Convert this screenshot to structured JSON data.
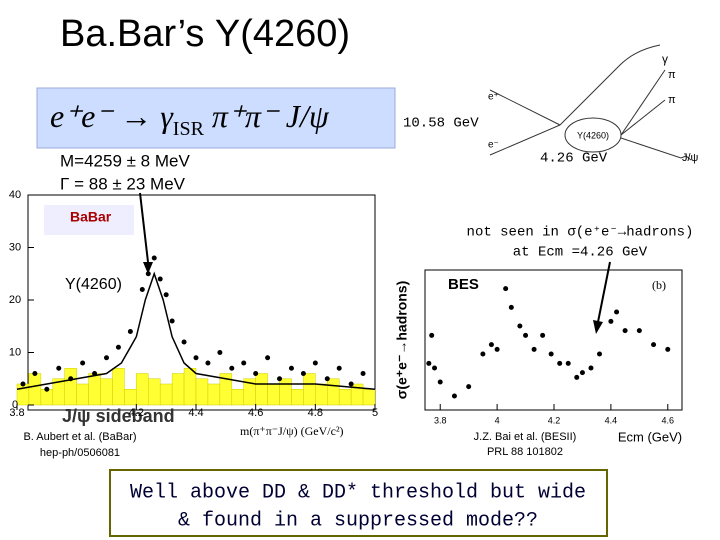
{
  "header": {
    "title": "Ba.Bar’s Υ(4260)"
  },
  "formula": {
    "parts": [
      "e⁺e⁻ → γ",
      "ISR",
      " π⁺π⁻ J/ψ"
    ]
  },
  "diagram": {
    "beam_energy": "10.58 GeV",
    "resonance_energy": "4.26 GeV",
    "labels": [
      "γ",
      "π",
      "π",
      "e⁺",
      "e⁻",
      "Υ(4260)",
      "J/ψ"
    ]
  },
  "fit_result": [
    "M=4259 ± 8 MeV",
    "Γ = 88 ± 23 MeV"
  ],
  "left_plot": {
    "type": "scatter",
    "logo": "BaBar",
    "peak_label": "Υ(4260)",
    "sideband_label": "J/ψ sideband",
    "xlabel": "m(π⁺π⁻J/ψ) (GeV/c²)",
    "credit": [
      "B. Aubert et al. (BaBar)",
      "hep-ph/0506081"
    ],
    "xlim": [
      3.8,
      5.0
    ],
    "ylim": [
      0,
      40
    ],
    "xticks": [
      3.8,
      4.2,
      4.4,
      4.6,
      4.8,
      5
    ],
    "yticks": [
      0,
      10,
      20,
      30,
      40
    ],
    "x": [
      3.82,
      3.86,
      3.9,
      3.94,
      3.98,
      4.02,
      4.06,
      4.1,
      4.14,
      4.18,
      4.22,
      4.24,
      4.26,
      4.28,
      4.3,
      4.32,
      4.36,
      4.4,
      4.44,
      4.48,
      4.52,
      4.56,
      4.6,
      4.64,
      4.68,
      4.72,
      4.76,
      4.8,
      4.84,
      4.88,
      4.92,
      4.96
    ],
    "y": [
      4,
      6,
      3,
      7,
      5,
      8,
      6,
      9,
      11,
      14,
      22,
      25,
      28,
      24,
      21,
      16,
      12,
      9,
      8,
      10,
      7,
      8,
      6,
      9,
      5,
      7,
      6,
      8,
      5,
      7,
      4,
      6
    ],
    "fit": {
      "x": [
        3.8,
        3.9,
        4.0,
        4.1,
        4.15,
        4.2,
        4.23,
        4.26,
        4.29,
        4.32,
        4.36,
        4.4,
        4.5,
        4.6,
        4.8,
        5.0
      ],
      "y": [
        3,
        4,
        5,
        6,
        8,
        13,
        20,
        25,
        20,
        13,
        8,
        6,
        5,
        4,
        4,
        3
      ]
    },
    "sideband": {
      "color": "#ffff33",
      "bins": [
        3.8,
        3.84,
        3.88,
        3.92,
        3.96,
        4.0,
        4.04,
        4.08,
        4.12,
        4.16,
        4.2,
        4.24,
        4.28,
        4.32,
        4.36,
        4.4,
        4.44,
        4.48,
        4.52,
        4.56,
        4.6,
        4.64,
        4.68,
        4.72,
        4.76,
        4.8,
        4.84,
        4.88,
        4.92,
        4.96,
        5.0
      ],
      "counts": [
        4,
        6,
        3,
        5,
        7,
        4,
        6,
        5,
        7,
        3,
        6,
        5,
        4,
        6,
        7,
        5,
        4,
        6,
        3,
        5,
        6,
        4,
        5,
        3,
        6,
        4,
        5,
        3,
        4,
        3
      ]
    }
  },
  "right_plot": {
    "type": "scatter",
    "ylabel": "σ(e⁺e⁻→hadrons)",
    "tag": "BES",
    "panel": "(b)",
    "xlabel": "Ecm (GeV)",
    "note": [
      "not seen in σ(e⁺e⁻→hadrons)",
      "at Ecm =4.26 GeV"
    ],
    "credit": [
      "J.Z. Bai et al. (BESII)",
      "PRL 88 101802"
    ],
    "xlim": [
      3.75,
      4.65
    ],
    "ylim": [
      2,
      5
    ],
    "xticks": [
      3.8,
      4,
      4.2,
      4.4,
      4.6
    ],
    "x": [
      3.76,
      3.77,
      3.78,
      3.8,
      3.85,
      3.9,
      3.95,
      3.98,
      4.0,
      4.03,
      4.05,
      4.08,
      4.1,
      4.13,
      4.16,
      4.19,
      4.22,
      4.25,
      4.28,
      4.3,
      4.33,
      4.36,
      4.4,
      4.42,
      4.45,
      4.5,
      4.55,
      4.6
    ],
    "y": [
      3.0,
      3.6,
      2.9,
      2.6,
      2.3,
      2.5,
      3.2,
      3.4,
      3.3,
      4.6,
      4.2,
      3.8,
      3.6,
      3.3,
      3.6,
      3.2,
      3.0,
      3.0,
      2.7,
      2.8,
      2.9,
      3.2,
      3.9,
      4.1,
      3.7,
      3.7,
      3.4,
      3.3
    ]
  },
  "footer": {
    "lines": [
      "Well above DD & DD* threshold but wide",
      "& found in a suppressed mode??"
    ]
  }
}
